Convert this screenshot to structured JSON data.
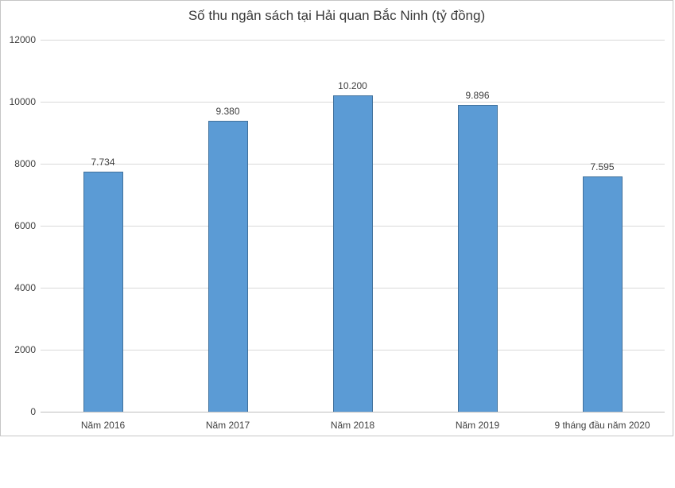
{
  "chart": {
    "frame_border_color": "#c6c6c6",
    "gridline_color": "#d9d9d9",
    "axis_line_color": "#bfbfbf",
    "text_color": "#404040"
  },
  "chart_data": {
    "type": "bar",
    "title": "Số thu ngân sách tại Hải quan Bắc Ninh (tỷ đồng)",
    "categories": [
      "Năm 2016",
      "Năm 2017",
      "Năm 2018",
      "Năm 2019",
      "9 tháng đầu năm 2020"
    ],
    "values": [
      7734,
      9380,
      10200,
      9896,
      7595
    ],
    "value_labels": [
      "7.734",
      "9.380",
      "10.200",
      "9.896",
      "7.595"
    ],
    "xlabel": "",
    "ylabel": "",
    "ylim": [
      0,
      12000
    ],
    "ytick_step": 2000,
    "ytick_labels": [
      "0",
      "2000",
      "4000",
      "6000",
      "8000",
      "10000",
      "12000"
    ],
    "grid": true,
    "legend_position": "none",
    "bar_color": "#5b9bd5",
    "bar_border_color": "#41719c"
  }
}
